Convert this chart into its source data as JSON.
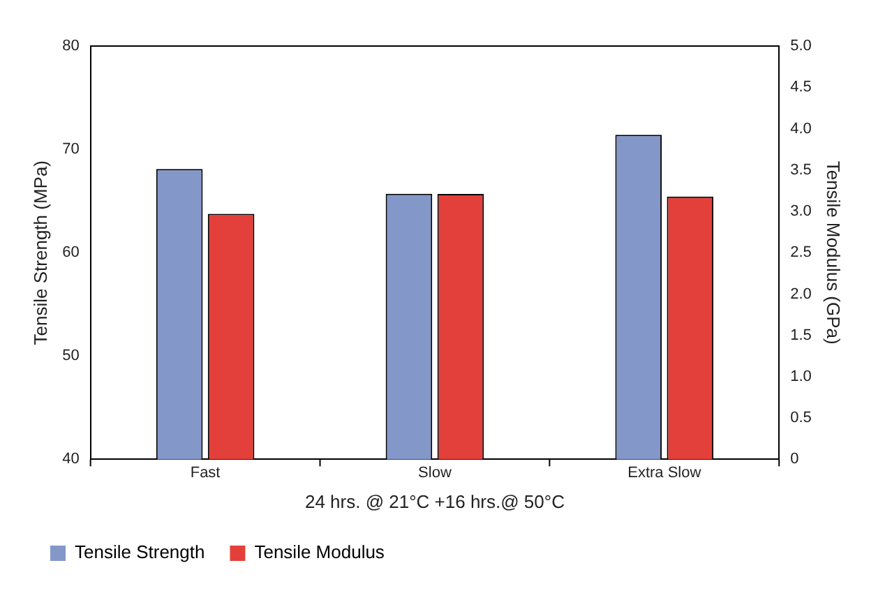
{
  "chart_data": {
    "type": "bar",
    "xlabel": "24 hrs. @ 21°C +16 hrs.@ 50°C",
    "ylabel": "Tensile Strength (MPa)",
    "y2label": "Tensile Modulus (GPa)",
    "categories": [
      "Fast",
      "Slow",
      "Extra Slow"
    ],
    "series": [
      {
        "name": "Tensile Strength",
        "color": "#8497c9",
        "values": [
          68.1,
          65.7,
          71.4
        ]
      },
      {
        "name": "Tensile Modulus",
        "color": "#e3403b",
        "values": [
          2.97,
          3.21,
          3.18
        ],
        "axis": "y2"
      }
    ],
    "ylim": [
      40,
      80
    ],
    "yticks": [
      40,
      50,
      60,
      70,
      80
    ],
    "y2lim": [
      0,
      5
    ],
    "y2ticks": [
      0,
      {
        "value": 0.5,
        "label": "0.5"
      },
      {
        "value": 1,
        "label": "1.0"
      },
      {
        "value": 1.5,
        "label": "1.5"
      },
      {
        "value": 2,
        "label": "2.0"
      },
      {
        "value": 2.5,
        "label": "2.5"
      },
      {
        "value": 3,
        "label": "3.0"
      },
      {
        "value": 3.5,
        "label": "3.5"
      },
      {
        "value": 4,
        "label": "4.0"
      },
      {
        "value": 4.5,
        "label": "4.5"
      },
      {
        "value": 5,
        "label": "5.0"
      }
    ],
    "grid": false,
    "legend": "bottom"
  }
}
